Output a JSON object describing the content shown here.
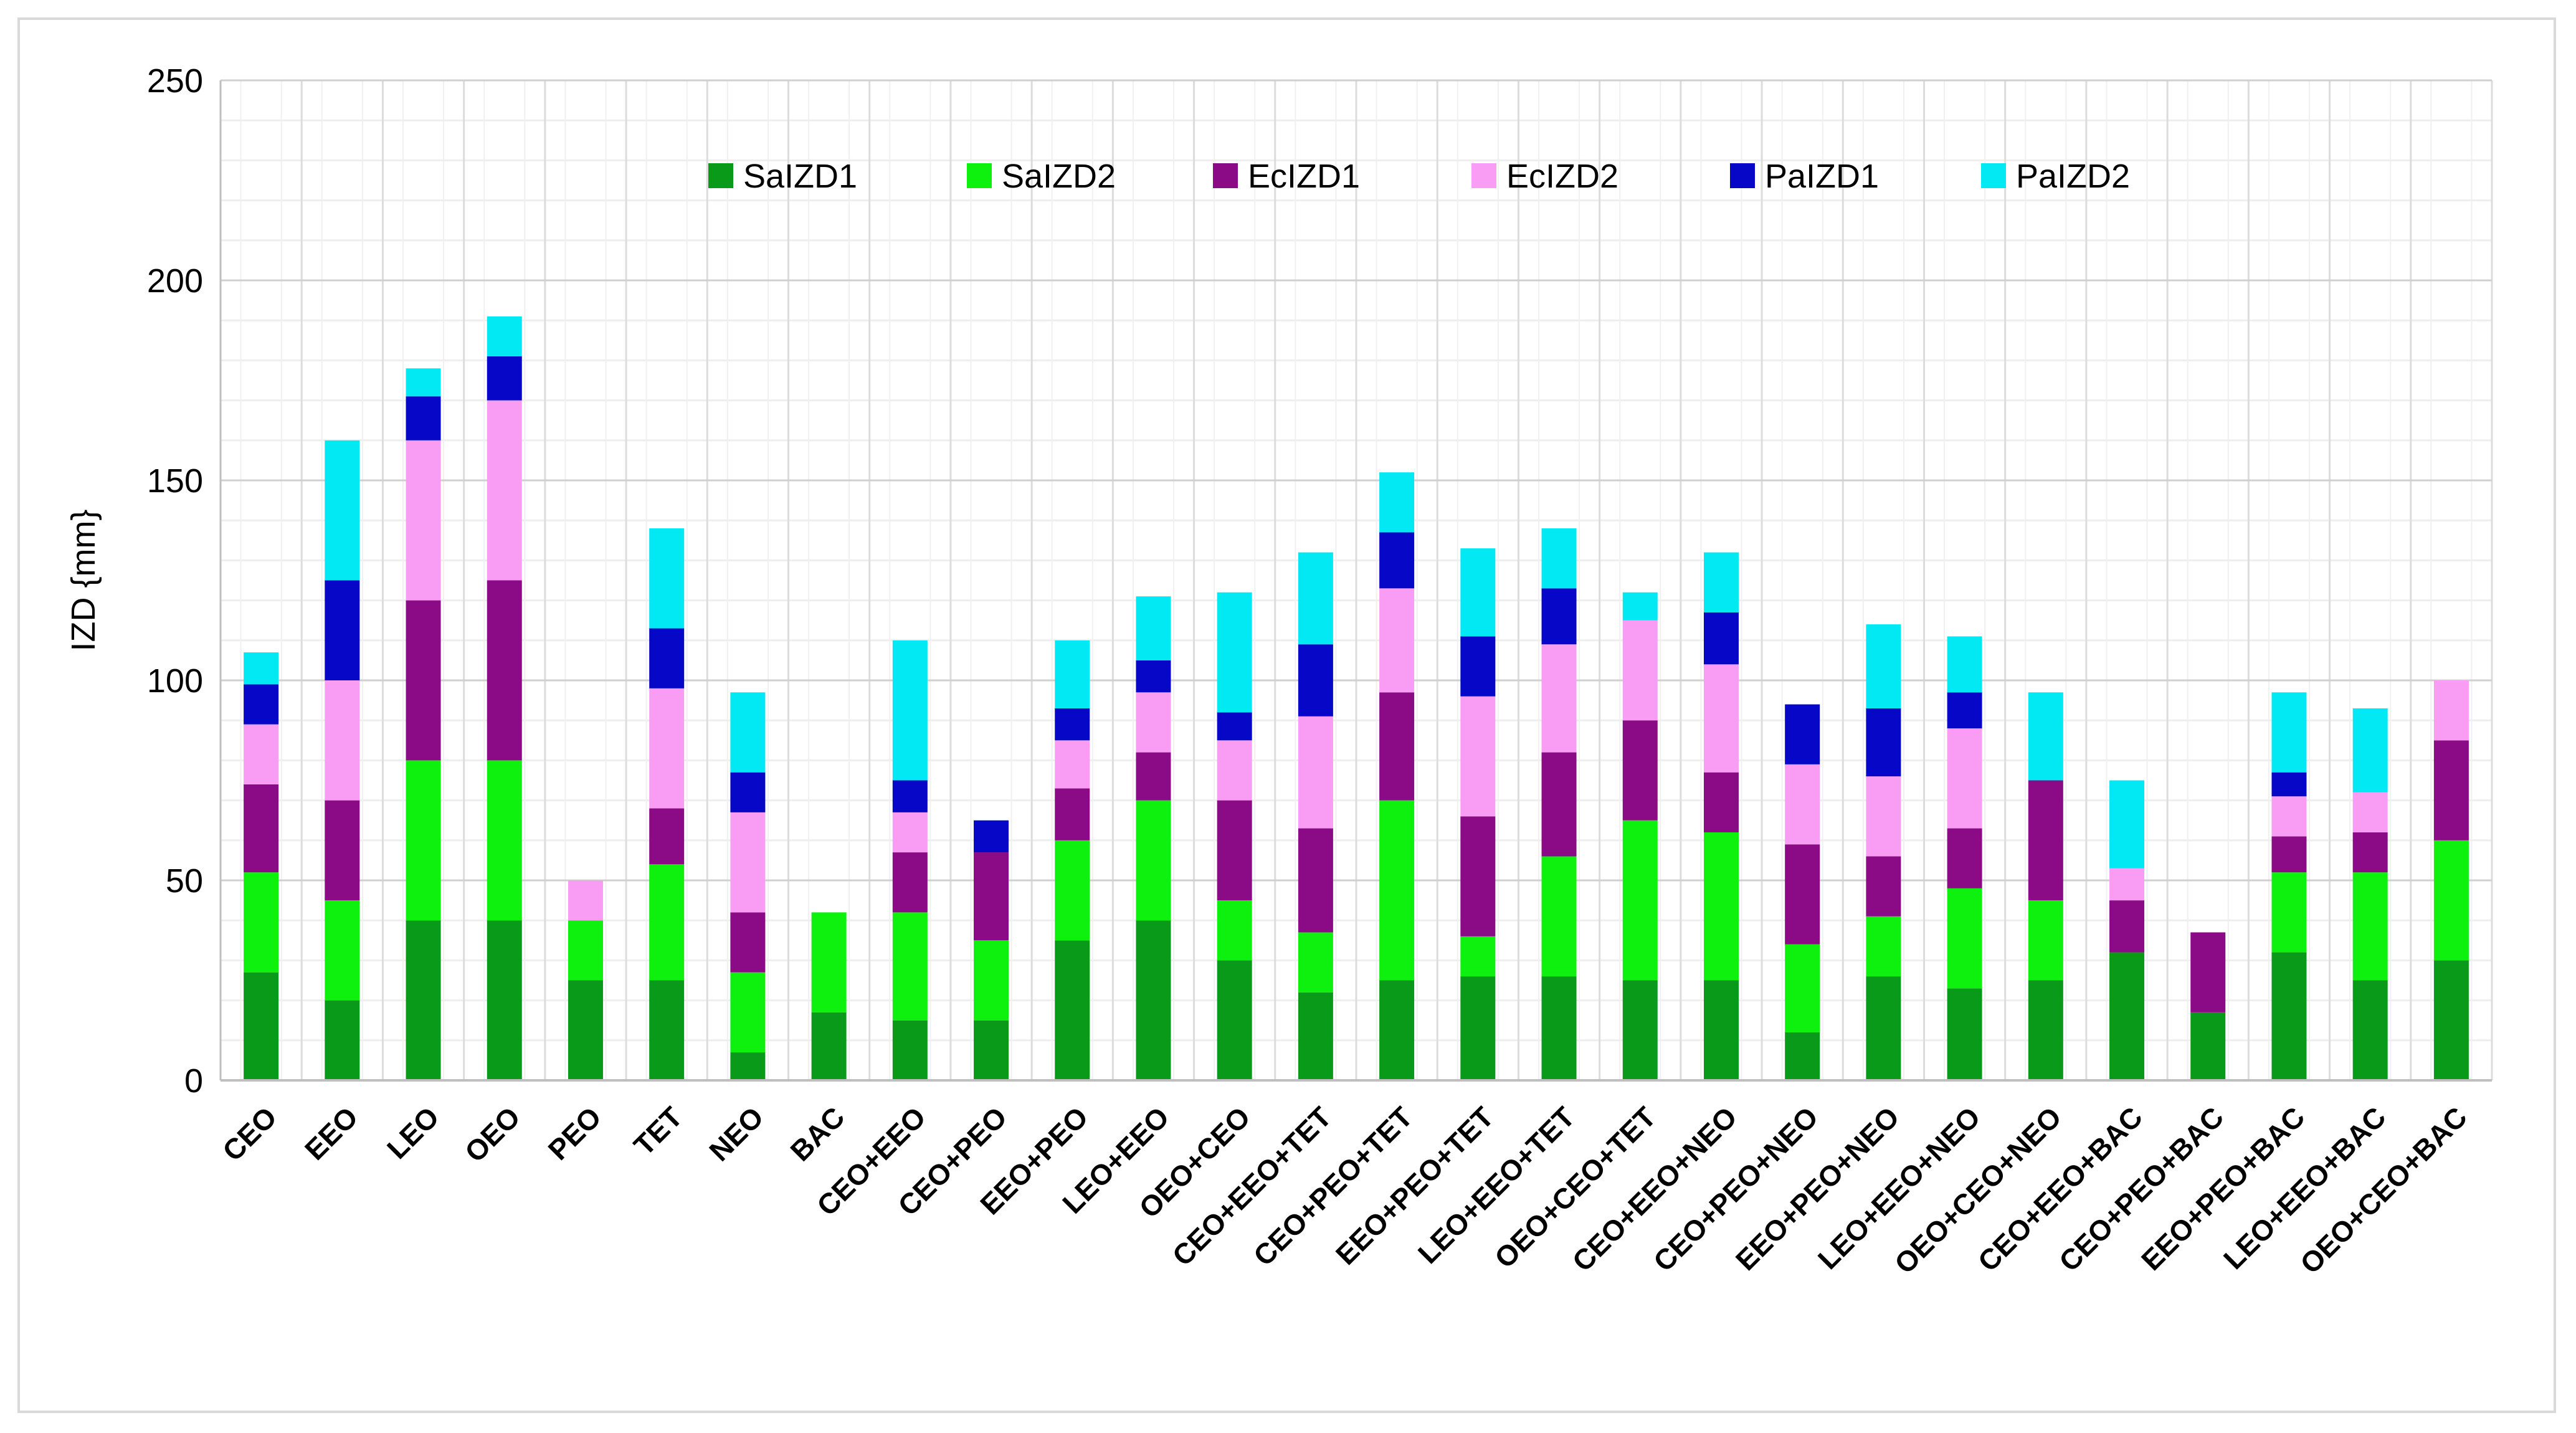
{
  "chart_data": {
    "type": "bar",
    "stacked": true,
    "title": "",
    "xlabel": "",
    "ylabel": "IZD {mm}",
    "ylim": [
      0,
      250
    ],
    "yticks": [
      0,
      50,
      100,
      150,
      200,
      250
    ],
    "grid": true,
    "legend_position": "top",
    "categories": [
      "CEO",
      "EEO",
      "LEO",
      "OEO",
      "PEO",
      "TET",
      "NEO",
      "BAC",
      "CEO+EEO",
      "CEO+PEO",
      "EEO+PEO",
      "LEO+EEO",
      "OEO+CEO",
      "CEO+EEO+TET",
      "CEO+PEO+TET",
      "EEO+PEO+TET",
      "LEO+EEO+TET",
      "OEO+CEO+TET",
      "CEO+EEO+NEO",
      "CEO+PEO+NEO",
      "EEO+PEO+NEO",
      "LEO+EEO+NEO",
      "OEO+CEO+NEO",
      "CEO+EEO+BAC",
      "CEO+PEO+BAC",
      "EEO+PEO+BAC",
      "LEO+EEO+BAC",
      "OEO+CEO+BAC"
    ],
    "series": [
      {
        "name": "SaIZD1",
        "color": "#0a9a1a",
        "values": [
          27,
          20,
          40,
          40,
          25,
          25,
          7,
          17,
          15,
          15,
          35,
          40,
          30,
          22,
          25,
          26,
          26,
          25,
          25,
          12,
          26,
          23,
          25,
          32,
          17,
          32,
          25,
          30
        ]
      },
      {
        "name": "SaIZD2",
        "color": "#0ef00e",
        "values": [
          25,
          25,
          40,
          40,
          15,
          29,
          20,
          25,
          27,
          20,
          25,
          30,
          15,
          15,
          45,
          10,
          30,
          40,
          37,
          22,
          15,
          25,
          20,
          0,
          0,
          20,
          27,
          30
        ]
      },
      {
        "name": "EcIZD1",
        "color": "#8b0a85",
        "values": [
          22,
          25,
          40,
          45,
          0,
          14,
          15,
          0,
          15,
          22,
          13,
          12,
          25,
          26,
          27,
          30,
          26,
          25,
          15,
          25,
          15,
          15,
          30,
          13,
          20,
          9,
          10,
          25
        ]
      },
      {
        "name": "EcIZD2",
        "color": "#f99cf4",
        "values": [
          15,
          30,
          40,
          45,
          10,
          30,
          25,
          0,
          10,
          0,
          12,
          15,
          15,
          28,
          26,
          30,
          27,
          25,
          27,
          20,
          20,
          25,
          0,
          8,
          0,
          10,
          10,
          15
        ]
      },
      {
        "name": "PaIZD1",
        "color": "#0707c8",
        "values": [
          10,
          25,
          11,
          11,
          0,
          15,
          10,
          0,
          8,
          8,
          8,
          8,
          7,
          18,
          14,
          15,
          14,
          0,
          13,
          15,
          17,
          9,
          0,
          0,
          0,
          6,
          0,
          0
        ]
      },
      {
        "name": "PaIZD2",
        "color": "#03e9f4",
        "values": [
          8,
          35,
          7,
          10,
          0,
          25,
          20,
          0,
          35,
          0,
          17,
          16,
          30,
          23,
          15,
          22,
          15,
          7,
          15,
          0,
          21,
          14,
          22,
          22,
          0,
          20,
          21,
          0
        ]
      }
    ]
  }
}
